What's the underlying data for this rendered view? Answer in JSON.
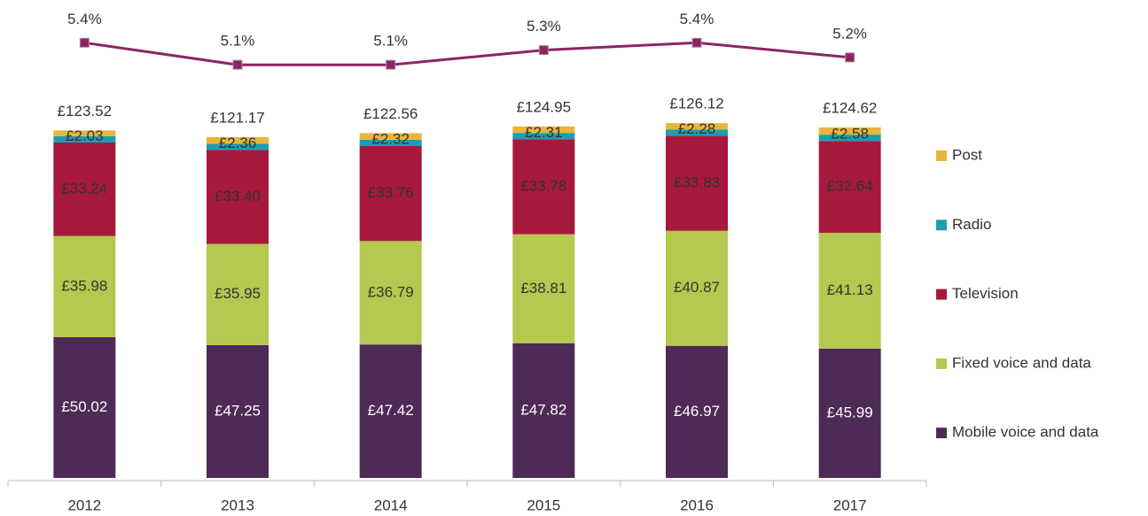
{
  "chart_data": {
    "type": "bar",
    "categories": [
      "2012",
      "2013",
      "2014",
      "2015",
      "2016",
      "2017"
    ],
    "stacked": true,
    "ylim": [
      0,
      140
    ],
    "y2lim": [
      4.5,
      5.5
    ],
    "series": [
      {
        "name": "Mobile voice and data",
        "color": "#4e2a57",
        "values": [
          50.02,
          47.25,
          47.42,
          47.82,
          46.97,
          45.99
        ],
        "value_labels": [
          "£50.02",
          "£47.25",
          "£47.42",
          "£47.82",
          "£46.97",
          "£45.99"
        ]
      },
      {
        "name": "Fixed voice and data",
        "color": "#b5c84f",
        "values": [
          35.98,
          35.95,
          36.79,
          38.81,
          40.87,
          41.13
        ],
        "value_labels": [
          "£35.98",
          "£35.95",
          "£36.79",
          "£38.81",
          "£40.87",
          "£41.13"
        ]
      },
      {
        "name": "Television",
        "color": "#a6193d",
        "values": [
          33.24,
          33.4,
          33.76,
          33.78,
          33.83,
          32.64
        ],
        "value_labels": [
          "£33.24",
          "£33.40",
          "£33.76",
          "£33.78",
          "£33.83",
          "£32.64"
        ]
      },
      {
        "name": "Radio",
        "color": "#1a9fb0",
        "values": [
          2.25,
          2.21,
          2.27,
          2.23,
          2.17,
          2.28
        ]
      },
      {
        "name": "Post",
        "color": "#e8b53a",
        "values": [
          2.03,
          2.36,
          2.32,
          2.31,
          2.28,
          2.58
        ],
        "value_labels": [
          "£2.03",
          "£2.36",
          "£2.32",
          "£2.31",
          "£2.28",
          "£2.58"
        ]
      },
      {
        "type": "line",
        "axis": "y2",
        "color": "#8b2465",
        "values": [
          5.4,
          5.1,
          5.1,
          5.3,
          5.4,
          5.2
        ],
        "value_labels": [
          "5.4%",
          "5.1%",
          "5.1%",
          "5.3%",
          "5.4%",
          "5.2%"
        ]
      }
    ],
    "totals": {
      "values": [
        123.52,
        121.17,
        122.56,
        124.95,
        126.12,
        124.62
      ],
      "value_labels": [
        "£123.52",
        "£121.17",
        "£122.56",
        "£124.95",
        "£126.12",
        "£124.62"
      ]
    },
    "legend": "right"
  }
}
